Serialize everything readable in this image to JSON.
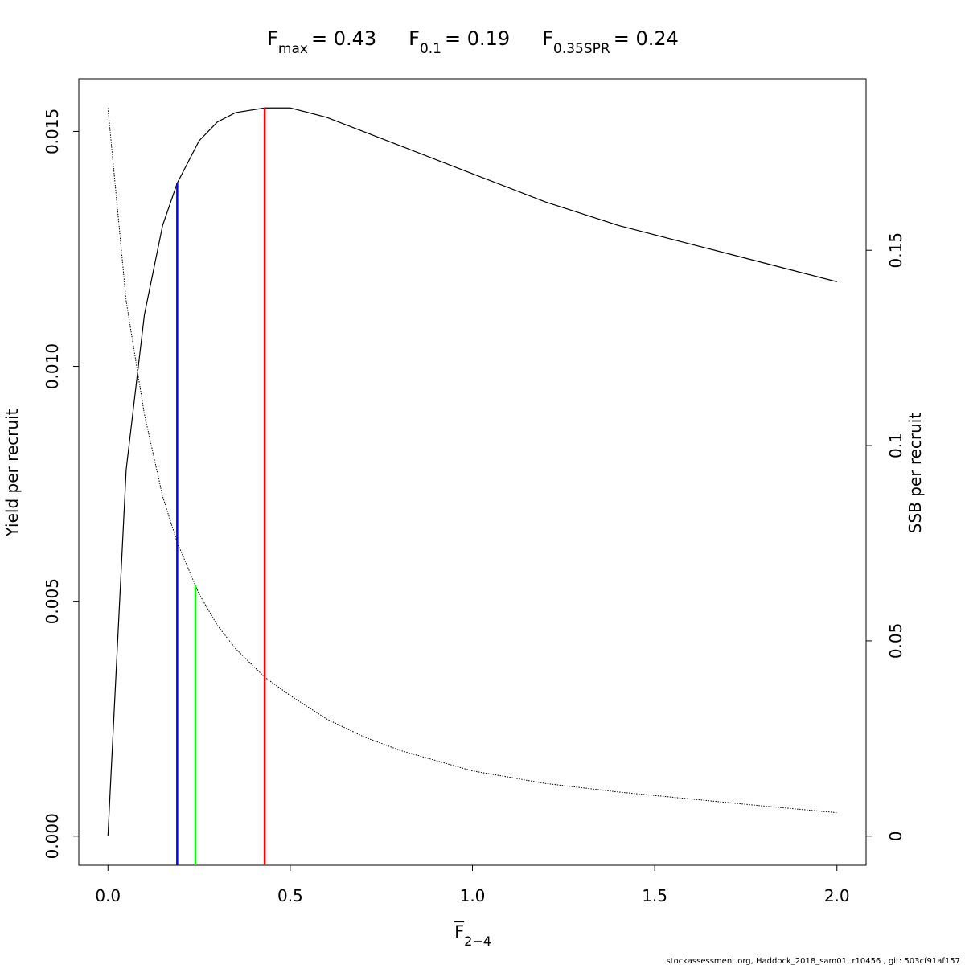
{
  "chart_data": {
    "type": "line",
    "title_parts": [
      {
        "symbol": "F",
        "subscript": "max",
        "equals": "= 0.43"
      },
      {
        "symbol": "F",
        "subscript": "0.1",
        "equals": "= 0.19"
      },
      {
        "symbol": "F",
        "subscript": "0.35SPR",
        "equals": "= 0.24"
      }
    ],
    "xlabel": {
      "symbol": "F",
      "subscript": "2−4"
    },
    "ylabel": "Yield per recruit",
    "y2label": "SSB per recruit",
    "footer": "stockassessment.org, Haddock_2018_sam01, r10456 , git: 503cf91af157",
    "x": [
      0,
      0.05,
      0.1,
      0.15,
      0.19,
      0.25,
      0.3,
      0.35,
      0.43,
      0.5,
      0.6,
      0.7,
      0.8,
      1.0,
      1.2,
      1.4,
      1.6,
      1.8,
      2.0
    ],
    "series": [
      {
        "color": "#000000",
        "style": "solid",
        "values": [
          0,
          0.0078,
          0.0111,
          0.013,
          0.0139,
          0.0148,
          0.0152,
          0.0154,
          0.0155,
          0.0155,
          0.0153,
          0.015,
          0.0147,
          0.0141,
          0.0135,
          0.013,
          0.0126,
          0.0122,
          0.0118
        ]
      },
      {
        "color": "#000000",
        "style": "dotted",
        "axis": "y2",
        "values": [
          0.1864,
          0.137,
          0.108,
          0.087,
          0.0752,
          0.062,
          0.054,
          0.048,
          0.0407,
          0.036,
          0.03,
          0.0255,
          0.022,
          0.0167,
          0.0135,
          0.0113,
          0.0095,
          0.0077,
          0.006
        ]
      }
    ],
    "reference_lines": [
      {
        "x": 0.19,
        "value": 0.0139,
        "color": "#0000ff"
      },
      {
        "x": 0.24,
        "value": 0.0643,
        "color": "#00ff00",
        "axis": "y2"
      },
      {
        "x": 0.43,
        "value": 0.0155,
        "color": "#ff0000"
      }
    ],
    "xlim": [
      -0.08,
      2.08
    ],
    "xticks": [
      {
        "value": 0,
        "label": "0.0"
      },
      0.5,
      {
        "value": 1,
        "label": "1.0"
      },
      1.5,
      {
        "value": 2,
        "label": "2.0"
      }
    ],
    "ylim": [
      -0.00062,
      0.01612
    ],
    "yticks": [
      {
        "value": 0,
        "label": "0.000"
      },
      {
        "value": 0.005,
        "label": "0.005"
      },
      {
        "value": 0.01,
        "label": "0.010"
      },
      {
        "value": 0.015,
        "label": "0.015"
      }
    ],
    "y2lim": [
      -0.00746,
      0.1939
    ],
    "y2ticks": [
      0,
      0.05,
      0.1,
      0.15
    ]
  }
}
